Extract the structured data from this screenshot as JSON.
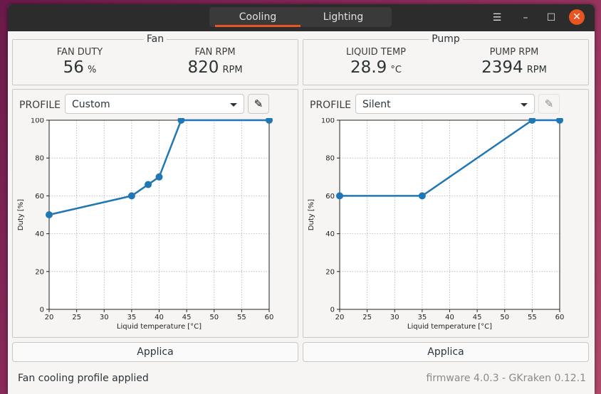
{
  "tabs": [
    {
      "label": "Cooling",
      "active": true
    },
    {
      "label": "Lighting",
      "active": false
    }
  ],
  "window_controls": {
    "menu": "☰",
    "minimize": "–",
    "maximize": "☐",
    "close": "✕"
  },
  "fan": {
    "title": "Fan",
    "duty_label": "FAN DUTY",
    "duty_value": "56",
    "duty_unit": "%",
    "rpm_label": "FAN RPM",
    "rpm_value": "820",
    "rpm_unit": "RPM"
  },
  "pump": {
    "title": "Pump",
    "temp_label": "LIQUID TEMP",
    "temp_value": "28.9",
    "temp_unit": "°C",
    "rpm_label": "PUMP RPM",
    "rpm_value": "2394",
    "rpm_unit": "RPM"
  },
  "fan_profile": {
    "label": "PROFILE",
    "selected": "Custom",
    "edit_icon": "pencil-icon",
    "apply_label": "Applica"
  },
  "pump_profile": {
    "label": "PROFILE",
    "selected": "Silent",
    "edit_icon": "pencil-icon",
    "apply_label": "Applica"
  },
  "status": {
    "message": "Fan cooling profile applied",
    "version": "firmware 4.0.3 - GKraken 0.12.1"
  },
  "colors": {
    "accent": "#e95420",
    "series": "#1f77b4"
  },
  "chart_data": [
    {
      "type": "line",
      "xlabel": "Liquid temperature [°C]",
      "ylabel": "Duty [%]",
      "xlim": [
        20,
        60
      ],
      "ylim": [
        0,
        100
      ],
      "xticks": [
        20,
        25,
        30,
        35,
        40,
        45,
        50,
        55,
        60
      ],
      "yticks": [
        0,
        20,
        40,
        60,
        80,
        100
      ],
      "grid": true,
      "x": [
        20,
        35,
        38,
        40,
        44,
        60
      ],
      "y": [
        50,
        60,
        66,
        70,
        100,
        100
      ]
    },
    {
      "type": "line",
      "xlabel": "Liquid temperature [°C]",
      "ylabel": "Duty [%]",
      "xlim": [
        20,
        60
      ],
      "ylim": [
        0,
        100
      ],
      "xticks": [
        20,
        25,
        30,
        35,
        40,
        45,
        50,
        55,
        60
      ],
      "yticks": [
        0,
        20,
        40,
        60,
        80,
        100
      ],
      "grid": true,
      "x": [
        20,
        35,
        55,
        60
      ],
      "y": [
        60,
        60,
        100,
        100
      ]
    }
  ]
}
